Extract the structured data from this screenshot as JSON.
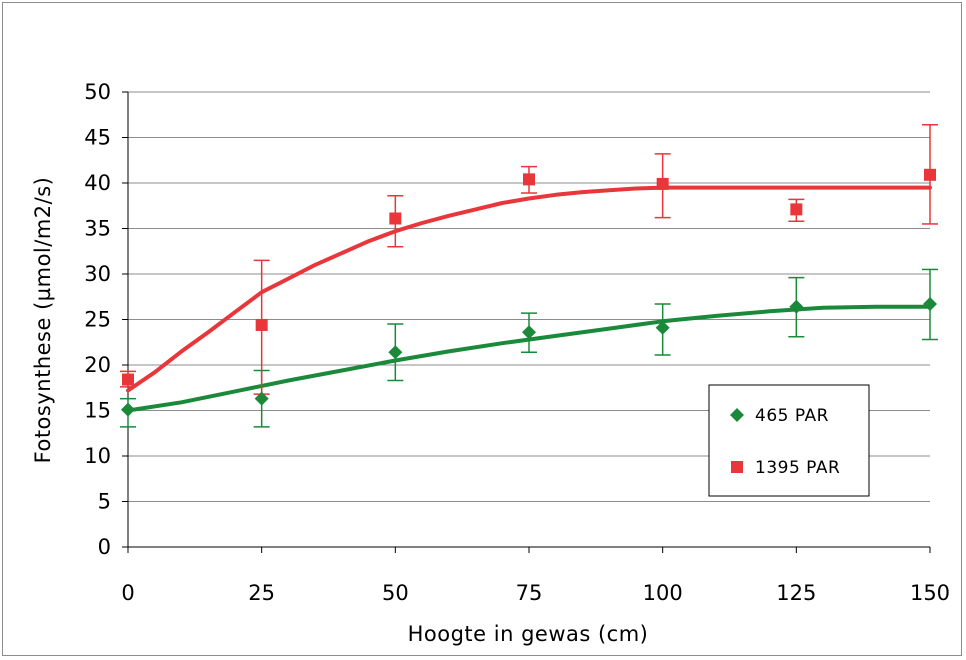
{
  "chart_data": {
    "type": "scatter",
    "xlabel": "Hoogte in gewas (cm)",
    "ylabel": "Fotosynthese (µmol/m2/s)",
    "xlim": [
      0,
      150
    ],
    "ylim": [
      0,
      50
    ],
    "x_ticks": [
      0,
      25,
      50,
      75,
      100,
      125,
      150
    ],
    "y_ticks": [
      0,
      5,
      10,
      15,
      20,
      25,
      30,
      35,
      40,
      45,
      50
    ],
    "x_tick_labels": [
      "0",
      "25",
      "50",
      "75",
      "100",
      "125",
      "150"
    ],
    "y_tick_labels": [
      "0",
      "5",
      "10",
      "15",
      "20",
      "25",
      "30",
      "35",
      "40",
      "45",
      "50"
    ],
    "grid": "horizontal",
    "legend_position": "bottom-right",
    "series": [
      {
        "name": "465 PAR",
        "color": "#1a8a3a",
        "marker": "diamond",
        "points": [
          {
            "x": 0,
            "y": 15.1,
            "err_low": 13.2,
            "err_high": 16.3
          },
          {
            "x": 25,
            "y": 16.3,
            "err_low": 13.2,
            "err_high": 19.4
          },
          {
            "x": 50,
            "y": 21.4,
            "err_low": 18.3,
            "err_high": 24.5
          },
          {
            "x": 75,
            "y": 23.6,
            "err_low": 21.4,
            "err_high": 25.7
          },
          {
            "x": 100,
            "y": 24.1,
            "err_low": 21.1,
            "err_high": 26.7
          },
          {
            "x": 125,
            "y": 26.4,
            "err_low": 23.1,
            "err_high": 29.6
          },
          {
            "x": 150,
            "y": 26.7,
            "err_low": 22.8,
            "err_high": 30.5
          }
        ],
        "fit_curve": [
          [
            0,
            15.0
          ],
          [
            10,
            15.9
          ],
          [
            20,
            17.1
          ],
          [
            30,
            18.3
          ],
          [
            40,
            19.4
          ],
          [
            50,
            20.5
          ],
          [
            60,
            21.5
          ],
          [
            70,
            22.4
          ],
          [
            80,
            23.2
          ],
          [
            90,
            24.0
          ],
          [
            100,
            24.8
          ],
          [
            110,
            25.4
          ],
          [
            120,
            25.9
          ],
          [
            130,
            26.3
          ],
          [
            140,
            26.4
          ],
          [
            150,
            26.4
          ]
        ]
      },
      {
        "name": "1395 PAR",
        "color": "#e8363a",
        "marker": "square",
        "points": [
          {
            "x": 0,
            "y": 18.4,
            "err_low": 17.6,
            "err_high": 19.3
          },
          {
            "x": 25,
            "y": 24.4,
            "err_low": 16.8,
            "err_high": 31.5
          },
          {
            "x": 50,
            "y": 36.1,
            "err_low": 33.0,
            "err_high": 38.6
          },
          {
            "x": 75,
            "y": 40.4,
            "err_low": 38.9,
            "err_high": 41.8
          },
          {
            "x": 100,
            "y": 39.9,
            "err_low": 36.2,
            "err_high": 43.2
          },
          {
            "x": 125,
            "y": 37.1,
            "err_low": 35.8,
            "err_high": 38.2
          },
          {
            "x": 150,
            "y": 40.9,
            "err_low": 35.5,
            "err_high": 46.4
          }
        ],
        "fit_curve": [
          [
            0,
            17.2
          ],
          [
            5,
            19.2
          ],
          [
            10,
            21.5
          ],
          [
            15,
            23.6
          ],
          [
            20,
            25.8
          ],
          [
            25,
            28.0
          ],
          [
            30,
            29.5
          ],
          [
            35,
            31.0
          ],
          [
            40,
            32.3
          ],
          [
            45,
            33.6
          ],
          [
            50,
            34.7
          ],
          [
            55,
            35.6
          ],
          [
            60,
            36.4
          ],
          [
            65,
            37.1
          ],
          [
            70,
            37.8
          ],
          [
            75,
            38.3
          ],
          [
            80,
            38.7
          ],
          [
            85,
            39.0
          ],
          [
            90,
            39.2
          ],
          [
            95,
            39.4
          ],
          [
            100,
            39.5
          ],
          [
            110,
            39.5
          ],
          [
            120,
            39.5
          ],
          [
            130,
            39.5
          ],
          [
            140,
            39.5
          ],
          [
            150,
            39.5
          ]
        ]
      }
    ]
  }
}
